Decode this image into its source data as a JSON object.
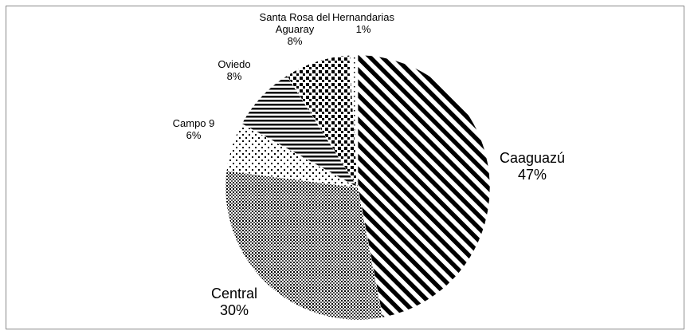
{
  "chart_data": {
    "type": "pie",
    "categories": [
      "Caaguazú",
      "Central",
      "Campo 9",
      "Oviedo",
      "Santa Rosa del Aguaray",
      "Hernandarias"
    ],
    "values": [
      47,
      30,
      6,
      8,
      8,
      1
    ],
    "value_labels": [
      "47%",
      "30%",
      "6%",
      "8%",
      "8%",
      "1%"
    ]
  }
}
